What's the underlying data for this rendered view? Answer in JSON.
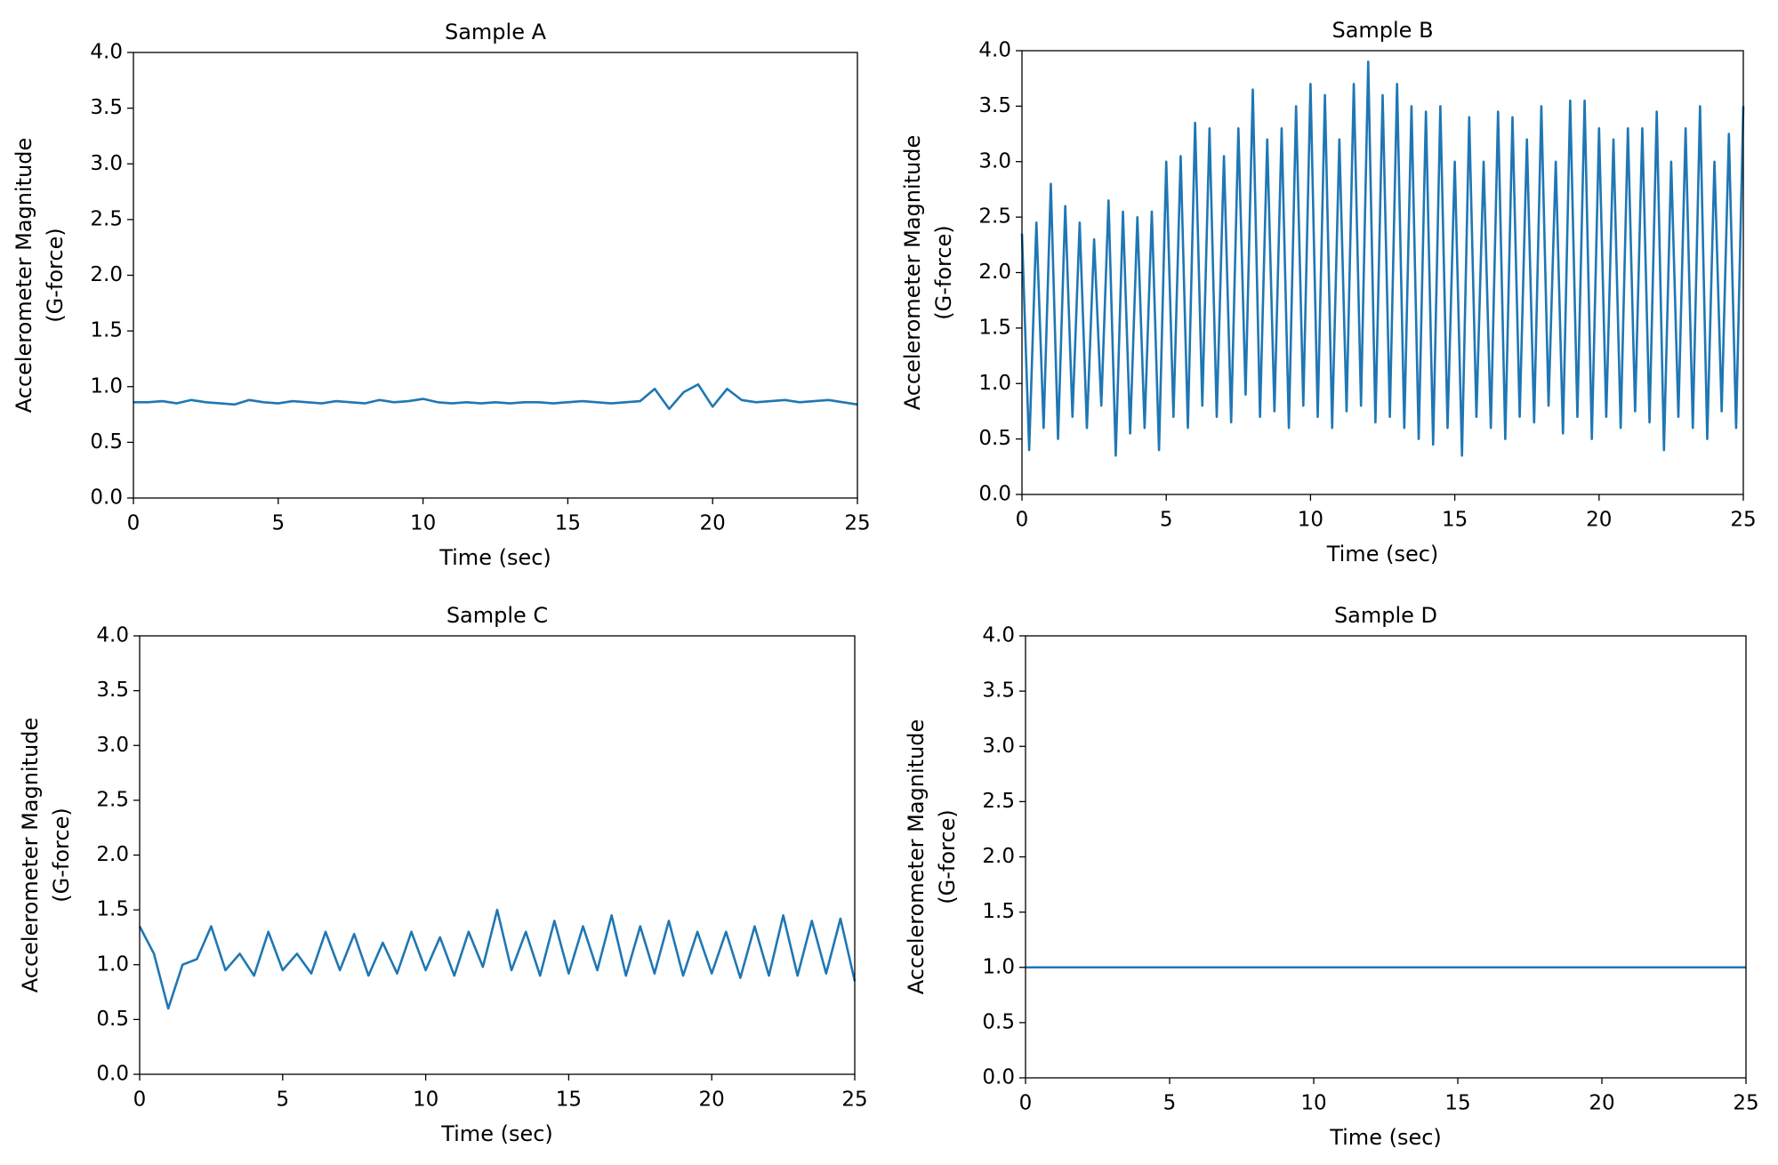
{
  "chart_data": [
    {
      "type": "line",
      "title": "Sample A",
      "xlabel": "Time (sec)",
      "ylabel": [
        "Accelerometer Magnitude",
        "(G-force)"
      ],
      "color": "#1f77b4",
      "xlim": [
        0,
        25
      ],
      "xticks": [
        0,
        5,
        10,
        15,
        20,
        25
      ],
      "ylim": [
        0,
        4
      ],
      "yticks": [
        {
          "value": 0,
          "label": "0.0"
        },
        {
          "value": 0.5,
          "label": "0.5"
        },
        {
          "value": 1,
          "label": "1.0"
        },
        {
          "value": 1.5,
          "label": "1.5"
        },
        {
          "value": 2,
          "label": "2.0"
        },
        {
          "value": 2.5,
          "label": "2.5"
        },
        {
          "value": 3,
          "label": "3.0"
        },
        {
          "value": 3.5,
          "label": "3.5"
        },
        {
          "value": 4,
          "label": "4.0"
        }
      ],
      "x": [
        0,
        0.5,
        1,
        1.5,
        2,
        2.5,
        3,
        3.5,
        4,
        4.5,
        5,
        5.5,
        6,
        6.5,
        7,
        7.5,
        8,
        8.5,
        9,
        9.5,
        10,
        10.5,
        11,
        11.5,
        12,
        12.5,
        13,
        13.5,
        14,
        14.5,
        15,
        15.5,
        16,
        16.5,
        17,
        17.5,
        18,
        18.5,
        19,
        19.5,
        20,
        20.5,
        21,
        21.5,
        22,
        22.5,
        23,
        23.5,
        24,
        24.5,
        25
      ],
      "values": [
        0.86,
        0.86,
        0.87,
        0.85,
        0.88,
        0.86,
        0.85,
        0.84,
        0.88,
        0.86,
        0.85,
        0.87,
        0.86,
        0.85,
        0.87,
        0.86,
        0.85,
        0.88,
        0.86,
        0.87,
        0.89,
        0.86,
        0.85,
        0.86,
        0.85,
        0.86,
        0.85,
        0.86,
        0.86,
        0.85,
        0.86,
        0.87,
        0.86,
        0.85,
        0.86,
        0.87,
        0.98,
        0.8,
        0.95,
        1.02,
        0.82,
        0.98,
        0.88,
        0.86,
        0.87,
        0.88,
        0.86,
        0.87,
        0.88,
        0.86,
        0.84
      ]
    },
    {
      "type": "line",
      "title": "Sample B",
      "xlabel": "Time (sec)",
      "ylabel": [
        "Accelerometer Magnitude",
        "(G-force)"
      ],
      "color": "#1f77b4",
      "xlim": [
        0,
        25
      ],
      "xticks": [
        0,
        5,
        10,
        15,
        20,
        25
      ],
      "ylim": [
        0,
        4
      ],
      "yticks": [
        {
          "value": 0,
          "label": "0.0"
        },
        {
          "value": 0.5,
          "label": "0.5"
        },
        {
          "value": 1,
          "label": "1.0"
        },
        {
          "value": 1.5,
          "label": "1.5"
        },
        {
          "value": 2,
          "label": "2.0"
        },
        {
          "value": 2.5,
          "label": "2.5"
        },
        {
          "value": 3,
          "label": "3.0"
        },
        {
          "value": 3.5,
          "label": "3.5"
        },
        {
          "value": 4,
          "label": "4.0"
        }
      ],
      "x": [
        0,
        0.25,
        0.5,
        0.75,
        1,
        1.25,
        1.5,
        1.75,
        2,
        2.25,
        2.5,
        2.75,
        3,
        3.25,
        3.5,
        3.75,
        4,
        4.25,
        4.5,
        4.75,
        5,
        5.25,
        5.5,
        5.75,
        6,
        6.25,
        6.5,
        6.75,
        7,
        7.25,
        7.5,
        7.75,
        8,
        8.25,
        8.5,
        8.75,
        9,
        9.25,
        9.5,
        9.75,
        10,
        10.25,
        10.5,
        10.75,
        11,
        11.25,
        11.5,
        11.75,
        12,
        12.25,
        12.5,
        12.75,
        13,
        13.25,
        13.5,
        13.75,
        14,
        14.25,
        14.5,
        14.75,
        15,
        15.25,
        15.5,
        15.75,
        16,
        16.25,
        16.5,
        16.75,
        17,
        17.25,
        17.5,
        17.75,
        18,
        18.25,
        18.5,
        18.75,
        19,
        19.25,
        19.5,
        19.75,
        20,
        20.25,
        20.5,
        20.75,
        21,
        21.25,
        21.5,
        21.75,
        22,
        22.25,
        22.5,
        22.75,
        23,
        23.25,
        23.5,
        23.75,
        24,
        24.25,
        24.5,
        24.75,
        25
      ],
      "values": [
        2.35,
        0.4,
        2.45,
        0.6,
        2.8,
        0.5,
        2.6,
        0.7,
        2.45,
        0.6,
        2.3,
        0.8,
        2.65,
        0.35,
        2.55,
        0.55,
        2.5,
        0.6,
        2.55,
        0.4,
        3.0,
        0.7,
        3.05,
        0.6,
        3.35,
        0.8,
        3.3,
        0.7,
        3.05,
        0.65,
        3.3,
        0.9,
        3.65,
        0.7,
        3.2,
        0.75,
        3.3,
        0.6,
        3.5,
        0.8,
        3.7,
        0.7,
        3.6,
        0.6,
        3.2,
        0.75,
        3.7,
        0.8,
        3.9,
        0.65,
        3.6,
        0.7,
        3.7,
        0.6,
        3.5,
        0.5,
        3.45,
        0.45,
        3.5,
        0.6,
        3.0,
        0.35,
        3.4,
        0.7,
        3.0,
        0.6,
        3.45,
        0.5,
        3.4,
        0.7,
        3.2,
        0.65,
        3.5,
        0.8,
        3.0,
        0.55,
        3.55,
        0.7,
        3.55,
        0.5,
        3.3,
        0.7,
        3.2,
        0.6,
        3.3,
        0.75,
        3.3,
        0.65,
        3.45,
        0.4,
        3.0,
        0.7,
        3.3,
        0.6,
        3.5,
        0.5,
        3.0,
        0.75,
        3.25,
        0.6,
        3.5
      ]
    },
    {
      "type": "line",
      "title": "Sample C",
      "xlabel": "Time (sec)",
      "ylabel": [
        "Accelerometer Magnitude",
        "(G-force)"
      ],
      "color": "#1f77b4",
      "xlim": [
        0,
        25
      ],
      "xticks": [
        0,
        5,
        10,
        15,
        20,
        25
      ],
      "ylim": [
        0,
        4
      ],
      "yticks": [
        {
          "value": 0,
          "label": "0.0"
        },
        {
          "value": 0.5,
          "label": "0.5"
        },
        {
          "value": 1,
          "label": "1.0"
        },
        {
          "value": 1.5,
          "label": "1.5"
        },
        {
          "value": 2,
          "label": "2.0"
        },
        {
          "value": 2.5,
          "label": "2.5"
        },
        {
          "value": 3,
          "label": "3.0"
        },
        {
          "value": 3.5,
          "label": "3.5"
        },
        {
          "value": 4,
          "label": "4.0"
        }
      ],
      "x": [
        0,
        0.5,
        1,
        1.5,
        2,
        2.5,
        3,
        3.5,
        4,
        4.5,
        5,
        5.5,
        6,
        6.5,
        7,
        7.5,
        8,
        8.5,
        9,
        9.5,
        10,
        10.5,
        11,
        11.5,
        12,
        12.5,
        13,
        13.5,
        14,
        14.5,
        15,
        15.5,
        16,
        16.5,
        17,
        17.5,
        18,
        18.5,
        19,
        19.5,
        20,
        20.5,
        21,
        21.5,
        22,
        22.5,
        23,
        23.5,
        24,
        24.5,
        25
      ],
      "values": [
        1.35,
        1.1,
        0.6,
        1.0,
        1.05,
        1.35,
        0.95,
        1.1,
        0.9,
        1.3,
        0.95,
        1.1,
        0.92,
        1.3,
        0.95,
        1.28,
        0.9,
        1.2,
        0.92,
        1.3,
        0.95,
        1.25,
        0.9,
        1.3,
        0.98,
        1.5,
        0.95,
        1.3,
        0.9,
        1.4,
        0.92,
        1.35,
        0.95,
        1.45,
        0.9,
        1.35,
        0.92,
        1.4,
        0.9,
        1.3,
        0.92,
        1.3,
        0.88,
        1.35,
        0.9,
        1.45,
        0.9,
        1.4,
        0.92,
        1.42,
        0.85
      ]
    },
    {
      "type": "line",
      "title": "Sample D",
      "xlabel": "Time (sec)",
      "ylabel": [
        "Accelerometer Magnitude",
        "(G-force)"
      ],
      "color": "#1f77b4",
      "xlim": [
        0,
        25
      ],
      "xticks": [
        0,
        5,
        10,
        15,
        20,
        25
      ],
      "ylim": [
        0,
        4
      ],
      "yticks": [
        {
          "value": 0,
          "label": "0.0"
        },
        {
          "value": 0.5,
          "label": "0.5"
        },
        {
          "value": 1,
          "label": "1.0"
        },
        {
          "value": 1.5,
          "label": "1.5"
        },
        {
          "value": 2,
          "label": "2.0"
        },
        {
          "value": 2.5,
          "label": "2.5"
        },
        {
          "value": 3,
          "label": "3.0"
        },
        {
          "value": 3.5,
          "label": "3.5"
        },
        {
          "value": 4,
          "label": "4.0"
        }
      ],
      "x": [
        0,
        25
      ],
      "values": [
        1.0,
        1.0
      ]
    }
  ]
}
